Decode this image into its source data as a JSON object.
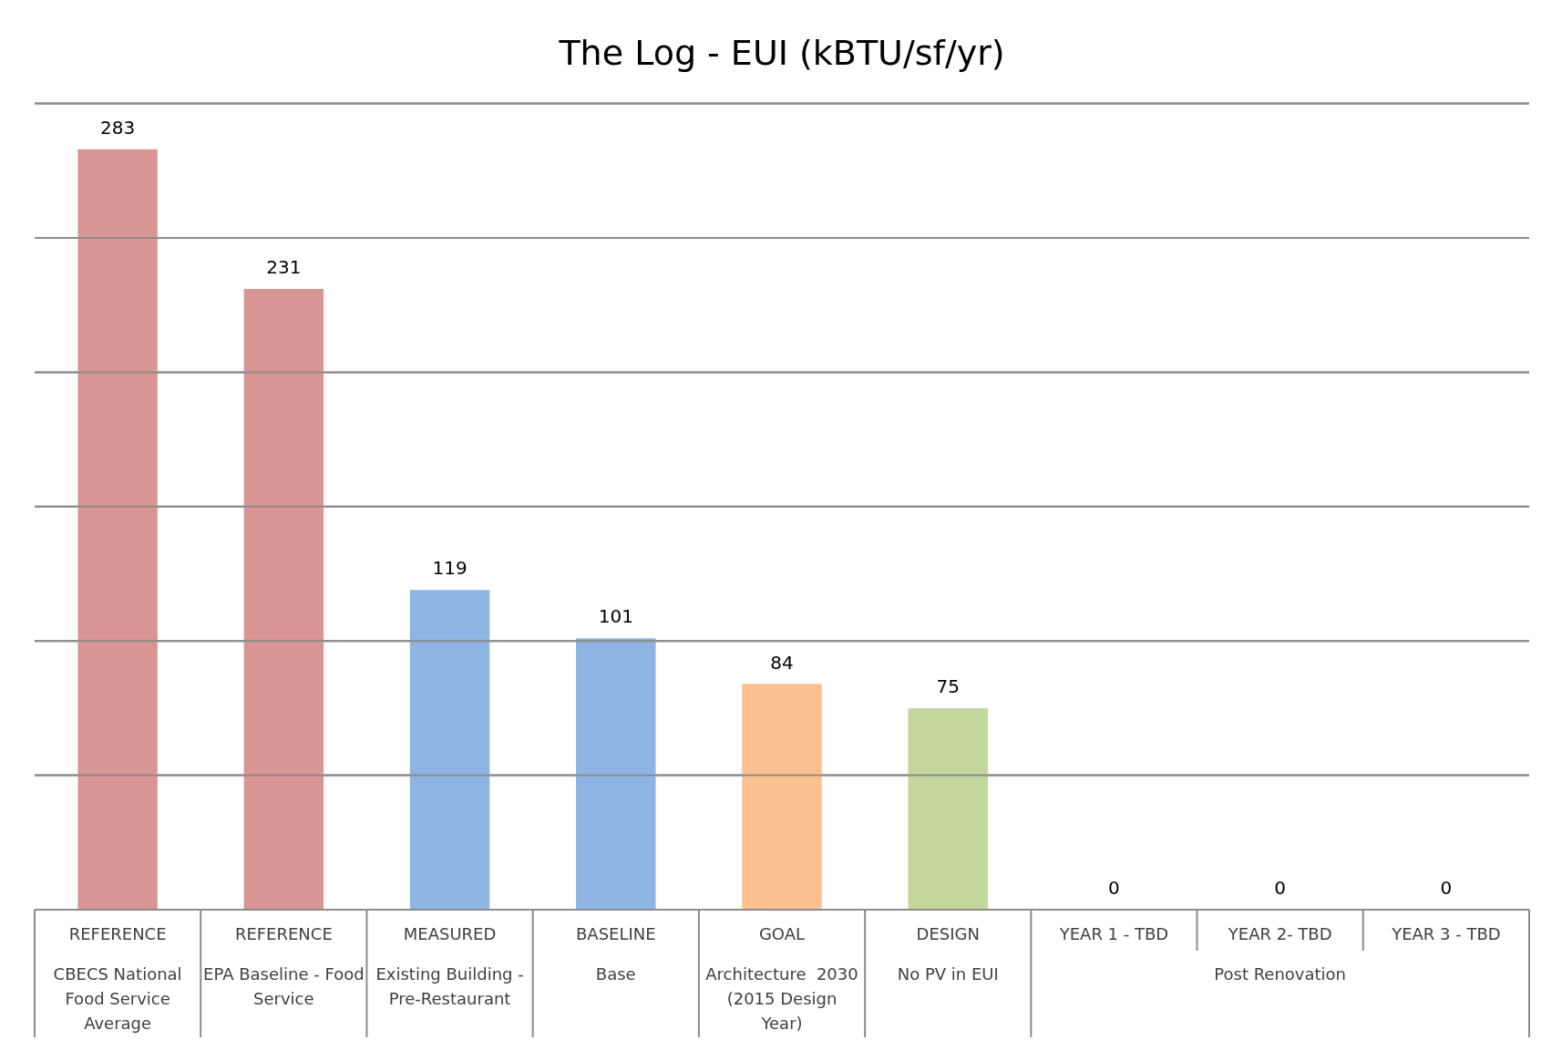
{
  "chart_data": {
    "type": "bar",
    "title": "The Log - EUI (kBTU/sf/yr)",
    "categories": [
      "REFERENCE\nCBECS National\nFood Service\nAverage",
      "REFERENCE\nEPA Baseline - Food\nService",
      "MEASURED\nExisting Building -\nPre-Restaurant",
      "BASELINE\nBase",
      "GOAL\nArchitecture  2030\n(2015 Design\nYear)",
      "DESIGN\nNo PV in EUI",
      "YEAR 1 - TBD",
      "YEAR 2- TBD",
      "YEAR 3 - TBD"
    ],
    "values": [
      283,
      231,
      119,
      101,
      84,
      75,
      0,
      0,
      0
    ],
    "colors": [
      "#d99594",
      "#d99594",
      "#8eb4e3",
      "#8eb4e3",
      "#fac08f",
      "#c3d69b",
      "#8eb4e3",
      "#8eb4e3",
      "#8eb4e3"
    ],
    "ylim": [
      0,
      300
    ],
    "yticks": [
      {
        "value": 0,
        "label": null
      },
      {
        "value": 50,
        "label": null
      },
      {
        "value": 100,
        "label": null
      },
      {
        "value": 150,
        "label": null
      },
      {
        "value": 200,
        "label": null
      },
      {
        "value": 250,
        "label": null
      },
      {
        "value": 300,
        "label": null
      }
    ],
    "tick_labels": "x",
    "grid": "y",
    "data_labels": true,
    "legend": false,
    "annotations": [
      "Post Renovation"
    ]
  }
}
